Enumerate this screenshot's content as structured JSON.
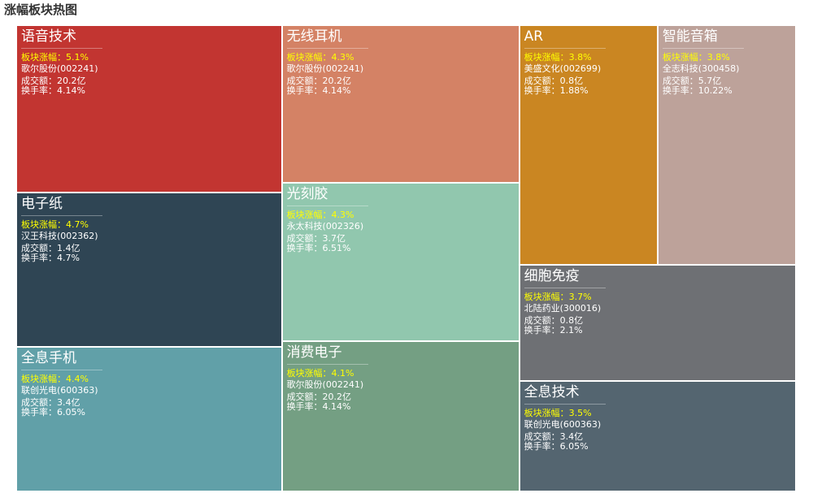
{
  "chart_data": {
    "type": "treemap",
    "title": "涨幅板块热图",
    "tiles": [
      {
        "name": "语音技术",
        "change_label": "板块涨幅：5.1%",
        "change_pct": 5.1,
        "stock": "歌尔股份(002241)",
        "volume_label": "成交额：20.2亿",
        "turnover_label": "换手率：4.14%",
        "color": "#c23531"
      },
      {
        "name": "电子纸",
        "change_label": "板块涨幅：4.7%",
        "change_pct": 4.7,
        "stock": "汉王科技(002362)",
        "volume_label": "成交额：1.4亿",
        "turnover_label": "换手率：4.7%",
        "color": "#2f4554"
      },
      {
        "name": "全息手机",
        "change_label": "板块涨幅：4.4%",
        "change_pct": 4.4,
        "stock": "联创光电(600363)",
        "volume_label": "成交额：3.4亿",
        "turnover_label": "换手率：6.05%",
        "color": "#61a0a8"
      },
      {
        "name": "无线耳机",
        "change_label": "板块涨幅：4.3%",
        "change_pct": 4.3,
        "stock": "歌尔股份(002241)",
        "volume_label": "成交额：20.2亿",
        "turnover_label": "换手率：4.14%",
        "color": "#d48265"
      },
      {
        "name": "光刻胶",
        "change_label": "板块涨幅：4.3%",
        "change_pct": 4.3,
        "stock": "永太科技(002326)",
        "volume_label": "成交额：3.7亿",
        "turnover_label": "换手率：6.51%",
        "color": "#91c7ae"
      },
      {
        "name": "消费电子",
        "change_label": "板块涨幅：4.1%",
        "change_pct": 4.1,
        "stock": "歌尔股份(002241)",
        "volume_label": "成交额：20.2亿",
        "turnover_label": "换手率：4.14%",
        "color": "#749f83"
      },
      {
        "name": "AR",
        "change_label": "板块涨幅：3.8%",
        "change_pct": 3.8,
        "stock": "美盛文化(002699)",
        "volume_label": "成交额：0.8亿",
        "turnover_label": "换手率：1.88%",
        "color": "#ca8622"
      },
      {
        "name": "智能音箱",
        "change_label": "板块涨幅：3.8%",
        "change_pct": 3.8,
        "stock": "全志科技(300458)",
        "volume_label": "成交额：5.7亿",
        "turnover_label": "换手率：10.22%",
        "color": "#bda29a"
      },
      {
        "name": "细胞免疫",
        "change_label": "板块涨幅：3.7%",
        "change_pct": 3.7,
        "stock": "北陆药业(300016)",
        "volume_label": "成交额：0.8亿",
        "turnover_label": "换手率：2.1%",
        "color": "#6e7074"
      },
      {
        "name": "全息技术",
        "change_label": "板块涨幅：3.5%",
        "change_pct": 3.5,
        "stock": "联创光电(600363)",
        "volume_label": "成交额：3.4亿",
        "turnover_label": "换手率：6.05%",
        "color": "#546570"
      }
    ]
  }
}
